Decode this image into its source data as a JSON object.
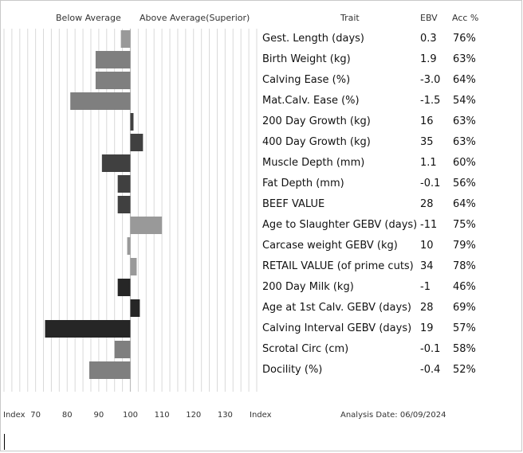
{
  "header": {
    "below_label": "Below Average",
    "above_label": "Above Average(Superior)",
    "trait_col": "Trait",
    "ebv_col": "EBV",
    "acc_col": "Acc %"
  },
  "footer": {
    "index_left": "Index",
    "index_right": "Index",
    "analysis_date": "Analysis Date: 06/09/2024"
  },
  "colors": {
    "light": "#999999",
    "mid": "#7f7f7f",
    "dark": "#404040",
    "darkest": "#262626",
    "grid": "#d9d9d9"
  },
  "chart_data": {
    "type": "bar",
    "orientation": "horizontal",
    "x_ticks": [
      "70",
      "80",
      "90",
      "100",
      "110",
      "120",
      "130"
    ],
    "xlim": [
      60,
      140
    ],
    "baseline": 100,
    "grid": true,
    "rows": [
      {
        "trait": "Gest. Length (days)",
        "ebv": "0.3",
        "acc": "76%",
        "index": 97,
        "shade": "light"
      },
      {
        "trait": "Birth Weight (kg)",
        "ebv": "1.9",
        "acc": "63%",
        "index": 89,
        "shade": "mid"
      },
      {
        "trait": "Calving Ease (%)",
        "ebv": "-3.0",
        "acc": "64%",
        "index": 89,
        "shade": "mid"
      },
      {
        "trait": "Mat.Calv. Ease (%)",
        "ebv": "-1.5",
        "acc": "54%",
        "index": 81,
        "shade": "mid"
      },
      {
        "trait": "200 Day Growth (kg)",
        "ebv": "16",
        "acc": "63%",
        "index": 101,
        "shade": "dark"
      },
      {
        "trait": "400 Day Growth (kg)",
        "ebv": "35",
        "acc": "63%",
        "index": 104,
        "shade": "dark"
      },
      {
        "trait": "Muscle Depth (mm)",
        "ebv": "1.1",
        "acc": "60%",
        "index": 91,
        "shade": "dark"
      },
      {
        "trait": "Fat Depth (mm)",
        "ebv": "-0.1",
        "acc": "56%",
        "index": 96,
        "shade": "dark"
      },
      {
        "trait": "BEEF VALUE",
        "ebv": "28",
        "acc": "64%",
        "index": 96,
        "shade": "dark"
      },
      {
        "trait": "Age to Slaughter GEBV (days)",
        "ebv": "-11",
        "acc": "75%",
        "index": 110,
        "shade": "light"
      },
      {
        "trait": "Carcase weight GEBV (kg)",
        "ebv": "10",
        "acc": "79%",
        "index": 99,
        "shade": "light"
      },
      {
        "trait": "RETAIL VALUE (of prime cuts)",
        "ebv": "34",
        "acc": "78%",
        "index": 102,
        "shade": "light"
      },
      {
        "trait": "200 Day Milk (kg)",
        "ebv": "-1",
        "acc": "46%",
        "index": 96,
        "shade": "darkest"
      },
      {
        "trait": "Age at 1st Calv. GEBV (days)",
        "ebv": "28",
        "acc": "69%",
        "index": 103,
        "shade": "darkest"
      },
      {
        "trait": "Calving Interval GEBV (days)",
        "ebv": "19",
        "acc": "57%",
        "index": 73,
        "shade": "darkest"
      },
      {
        "trait": "Scrotal Circ (cm)",
        "ebv": "-0.1",
        "acc": "58%",
        "index": 95,
        "shade": "mid"
      },
      {
        "trait": "Docility (%)",
        "ebv": "-0.4",
        "acc": "52%",
        "index": 87,
        "shade": "mid"
      }
    ]
  }
}
